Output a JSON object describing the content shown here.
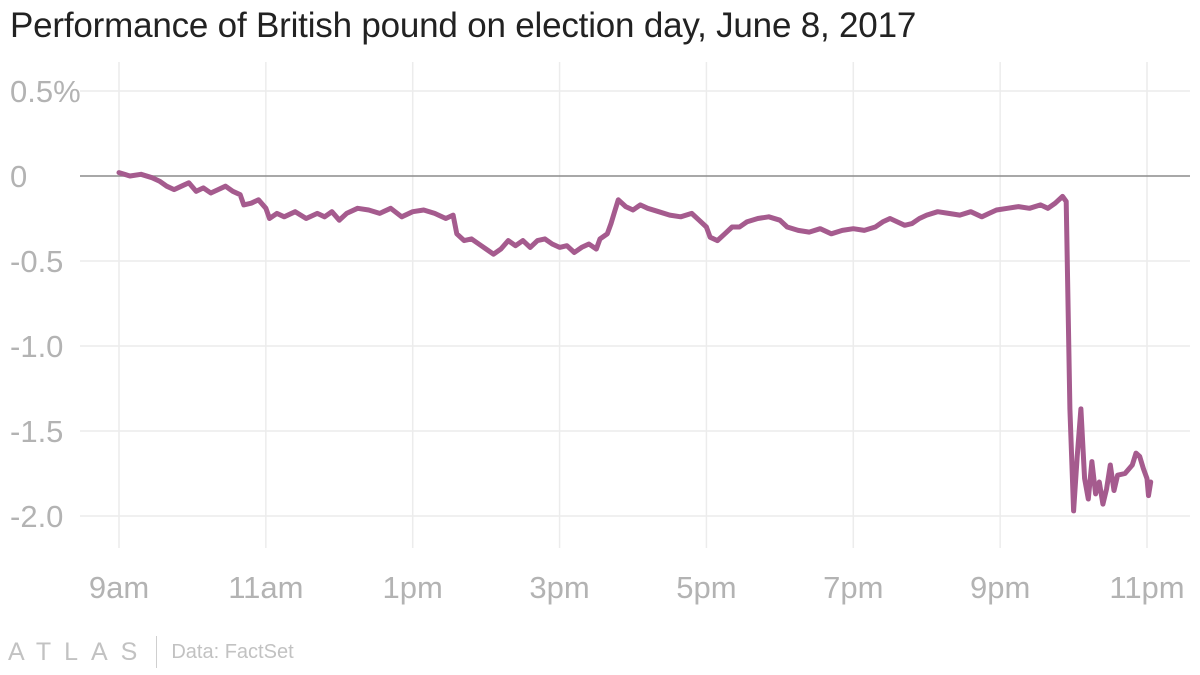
{
  "chart_data": {
    "type": "line",
    "title": "Performance of British pound on election day, June 8, 2017",
    "xlabel": "",
    "ylabel": "",
    "x_unit": "hours since 9am",
    "xlim": [
      0,
      14
    ],
    "ylim": [
      -2.0,
      0.5
    ],
    "y_ticks": [
      {
        "value": 0.5,
        "label": "0.5%"
      },
      {
        "value": 0.0,
        "label": "0"
      },
      {
        "value": -0.5,
        "label": "-0.5"
      },
      {
        "value": -1.0,
        "label": "-1.0"
      },
      {
        "value": -1.5,
        "label": "-1.5"
      },
      {
        "value": -2.0,
        "label": "-2.0"
      }
    ],
    "x_ticks": [
      {
        "value": 0,
        "label": "9am"
      },
      {
        "value": 2,
        "label": "11am"
      },
      {
        "value": 4,
        "label": "1pm"
      },
      {
        "value": 6,
        "label": "3pm"
      },
      {
        "value": 8,
        "label": "5pm"
      },
      {
        "value": 10,
        "label": "7pm"
      },
      {
        "value": 12,
        "label": "9pm"
      },
      {
        "value": 14,
        "label": "11pm"
      }
    ],
    "grid": true,
    "series": [
      {
        "name": "British pound",
        "color": "#a55b8e",
        "points": [
          [
            0.0,
            0.02
          ],
          [
            0.15,
            0.0
          ],
          [
            0.3,
            0.01
          ],
          [
            0.45,
            -0.01
          ],
          [
            0.55,
            -0.03
          ],
          [
            0.65,
            -0.06
          ],
          [
            0.75,
            -0.08
          ],
          [
            0.85,
            -0.06
          ],
          [
            0.95,
            -0.04
          ],
          [
            1.05,
            -0.09
          ],
          [
            1.15,
            -0.07
          ],
          [
            1.25,
            -0.1
          ],
          [
            1.35,
            -0.08
          ],
          [
            1.45,
            -0.06
          ],
          [
            1.55,
            -0.09
          ],
          [
            1.65,
            -0.11
          ],
          [
            1.7,
            -0.17
          ],
          [
            1.8,
            -0.16
          ],
          [
            1.9,
            -0.14
          ],
          [
            2.0,
            -0.19
          ],
          [
            2.05,
            -0.25
          ],
          [
            2.15,
            -0.22
          ],
          [
            2.25,
            -0.24
          ],
          [
            2.4,
            -0.21
          ],
          [
            2.55,
            -0.25
          ],
          [
            2.7,
            -0.22
          ],
          [
            2.8,
            -0.24
          ],
          [
            2.9,
            -0.21
          ],
          [
            3.0,
            -0.26
          ],
          [
            3.1,
            -0.22
          ],
          [
            3.25,
            -0.19
          ],
          [
            3.4,
            -0.2
          ],
          [
            3.55,
            -0.22
          ],
          [
            3.7,
            -0.19
          ],
          [
            3.85,
            -0.24
          ],
          [
            4.0,
            -0.21
          ],
          [
            4.15,
            -0.2
          ],
          [
            4.3,
            -0.22
          ],
          [
            4.45,
            -0.25
          ],
          [
            4.55,
            -0.23
          ],
          [
            4.6,
            -0.34
          ],
          [
            4.7,
            -0.38
          ],
          [
            4.8,
            -0.37
          ],
          [
            4.9,
            -0.4
          ],
          [
            5.0,
            -0.43
          ],
          [
            5.1,
            -0.46
          ],
          [
            5.2,
            -0.43
          ],
          [
            5.3,
            -0.38
          ],
          [
            5.4,
            -0.41
          ],
          [
            5.5,
            -0.38
          ],
          [
            5.6,
            -0.42
          ],
          [
            5.7,
            -0.38
          ],
          [
            5.8,
            -0.37
          ],
          [
            5.9,
            -0.4
          ],
          [
            6.0,
            -0.42
          ],
          [
            6.1,
            -0.41
          ],
          [
            6.2,
            -0.45
          ],
          [
            6.3,
            -0.42
          ],
          [
            6.4,
            -0.4
          ],
          [
            6.5,
            -0.43
          ],
          [
            6.55,
            -0.37
          ],
          [
            6.65,
            -0.34
          ],
          [
            6.7,
            -0.28
          ],
          [
            6.75,
            -0.21
          ],
          [
            6.8,
            -0.14
          ],
          [
            6.9,
            -0.18
          ],
          [
            7.0,
            -0.2
          ],
          [
            7.1,
            -0.17
          ],
          [
            7.2,
            -0.19
          ],
          [
            7.35,
            -0.21
          ],
          [
            7.5,
            -0.23
          ],
          [
            7.65,
            -0.24
          ],
          [
            7.8,
            -0.22
          ],
          [
            7.9,
            -0.26
          ],
          [
            8.0,
            -0.3
          ],
          [
            8.05,
            -0.36
          ],
          [
            8.15,
            -0.38
          ],
          [
            8.25,
            -0.34
          ],
          [
            8.35,
            -0.3
          ],
          [
            8.45,
            -0.3
          ],
          [
            8.55,
            -0.27
          ],
          [
            8.7,
            -0.25
          ],
          [
            8.85,
            -0.24
          ],
          [
            9.0,
            -0.26
          ],
          [
            9.1,
            -0.3
          ],
          [
            9.25,
            -0.32
          ],
          [
            9.4,
            -0.33
          ],
          [
            9.55,
            -0.31
          ],
          [
            9.7,
            -0.34
          ],
          [
            9.85,
            -0.32
          ],
          [
            10.0,
            -0.31
          ],
          [
            10.15,
            -0.32
          ],
          [
            10.3,
            -0.3
          ],
          [
            10.4,
            -0.27
          ],
          [
            10.5,
            -0.25
          ],
          [
            10.6,
            -0.27
          ],
          [
            10.7,
            -0.29
          ],
          [
            10.8,
            -0.28
          ],
          [
            10.9,
            -0.25
          ],
          [
            11.0,
            -0.23
          ],
          [
            11.15,
            -0.21
          ],
          [
            11.3,
            -0.22
          ],
          [
            11.45,
            -0.23
          ],
          [
            11.6,
            -0.21
          ],
          [
            11.75,
            -0.24
          ],
          [
            11.85,
            -0.22
          ],
          [
            11.95,
            -0.2
          ],
          [
            12.1,
            -0.19
          ],
          [
            12.25,
            -0.18
          ],
          [
            12.4,
            -0.19
          ],
          [
            12.55,
            -0.17
          ],
          [
            12.65,
            -0.19
          ],
          [
            12.75,
            -0.16
          ],
          [
            12.85,
            -0.12
          ],
          [
            12.9,
            -0.15
          ],
          [
            12.95,
            -1.37
          ],
          [
            13.0,
            -1.97
          ],
          [
            13.05,
            -1.65
          ],
          [
            13.1,
            -1.37
          ],
          [
            13.15,
            -1.78
          ],
          [
            13.2,
            -1.9
          ],
          [
            13.25,
            -1.68
          ],
          [
            13.3,
            -1.87
          ],
          [
            13.35,
            -1.8
          ],
          [
            13.4,
            -1.93
          ],
          [
            13.45,
            -1.84
          ],
          [
            13.5,
            -1.7
          ],
          [
            13.55,
            -1.85
          ],
          [
            13.6,
            -1.76
          ],
          [
            13.7,
            -1.75
          ],
          [
            13.8,
            -1.7
          ],
          [
            13.85,
            -1.63
          ],
          [
            13.9,
            -1.65
          ],
          [
            13.95,
            -1.72
          ],
          [
            14.0,
            -1.78
          ],
          [
            14.02,
            -1.88
          ],
          [
            14.05,
            -1.8
          ]
        ]
      }
    ]
  },
  "footer": {
    "brand": "ATLAS",
    "source": "Data: FactSet"
  }
}
